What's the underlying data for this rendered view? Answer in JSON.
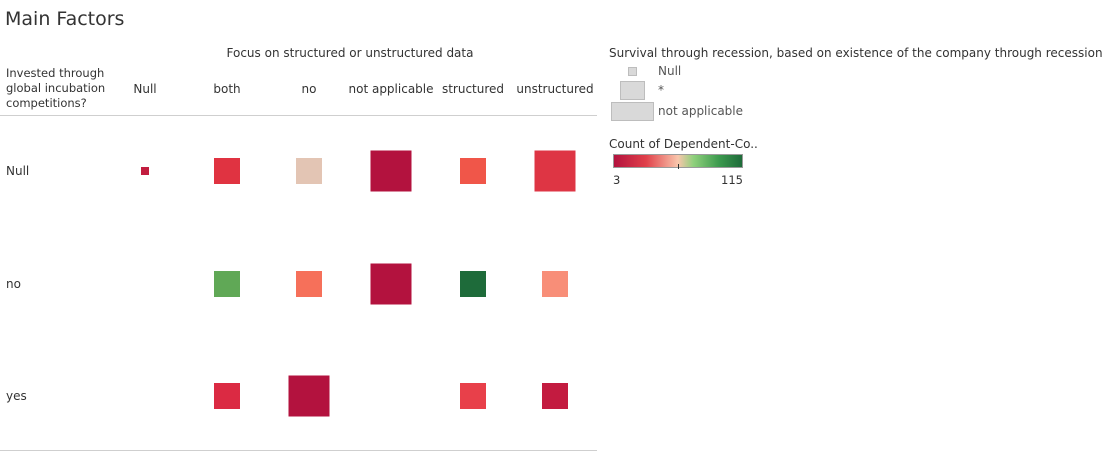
{
  "title": "Main Factors",
  "chart_data": {
    "type": "heatmap",
    "column_axis_title": "Focus on structured or unstructured data",
    "row_axis_title": "Invested through\nglobal incubation\ncompetitions?",
    "columns": [
      "Null",
      "both",
      "no",
      "not applicable",
      "structured",
      "unstructured"
    ],
    "rows": [
      "Null",
      "no",
      "yes"
    ],
    "cells": [
      {
        "row": "Null",
        "col": "Null",
        "color": "#c21d3f",
        "size_level": "Null"
      },
      {
        "row": "Null",
        "col": "both",
        "color": "#e03341",
        "size_level": "*"
      },
      {
        "row": "Null",
        "col": "no",
        "color": "#e3c5b4",
        "size_level": "*"
      },
      {
        "row": "Null",
        "col": "not applicable",
        "color": "#b3123e",
        "size_level": "not applicable"
      },
      {
        "row": "Null",
        "col": "structured",
        "color": "#f05649",
        "size_level": "*"
      },
      {
        "row": "Null",
        "col": "unstructured",
        "color": "#de3544",
        "size_level": "not applicable"
      },
      {
        "row": "no",
        "col": "both",
        "color": "#60a856",
        "size_level": "*"
      },
      {
        "row": "no",
        "col": "no",
        "color": "#f6705a",
        "size_level": "*"
      },
      {
        "row": "no",
        "col": "not applicable",
        "color": "#b3123e",
        "size_level": "not applicable"
      },
      {
        "row": "no",
        "col": "structured",
        "color": "#1e6b3a",
        "size_level": "*"
      },
      {
        "row": "no",
        "col": "unstructured",
        "color": "#f88e78",
        "size_level": "*"
      },
      {
        "row": "yes",
        "col": "both",
        "color": "#db2a43",
        "size_level": "*"
      },
      {
        "row": "yes",
        "col": "no",
        "color": "#b3123e",
        "size_level": "not applicable"
      },
      {
        "row": "yes",
        "col": "structured",
        "color": "#e8404a",
        "size_level": "*"
      },
      {
        "row": "yes",
        "col": "unstructured",
        "color": "#c31b40",
        "size_level": "*"
      }
    ],
    "size_legend": {
      "title": "Survival through recession, based on existence of the company through recession times",
      "items": [
        "Null",
        "*",
        "not applicable"
      ]
    },
    "color_legend": {
      "title": "Count of Dependent-Co..",
      "min_label": "3",
      "max_label": "115",
      "range": [
        3,
        115
      ]
    }
  }
}
